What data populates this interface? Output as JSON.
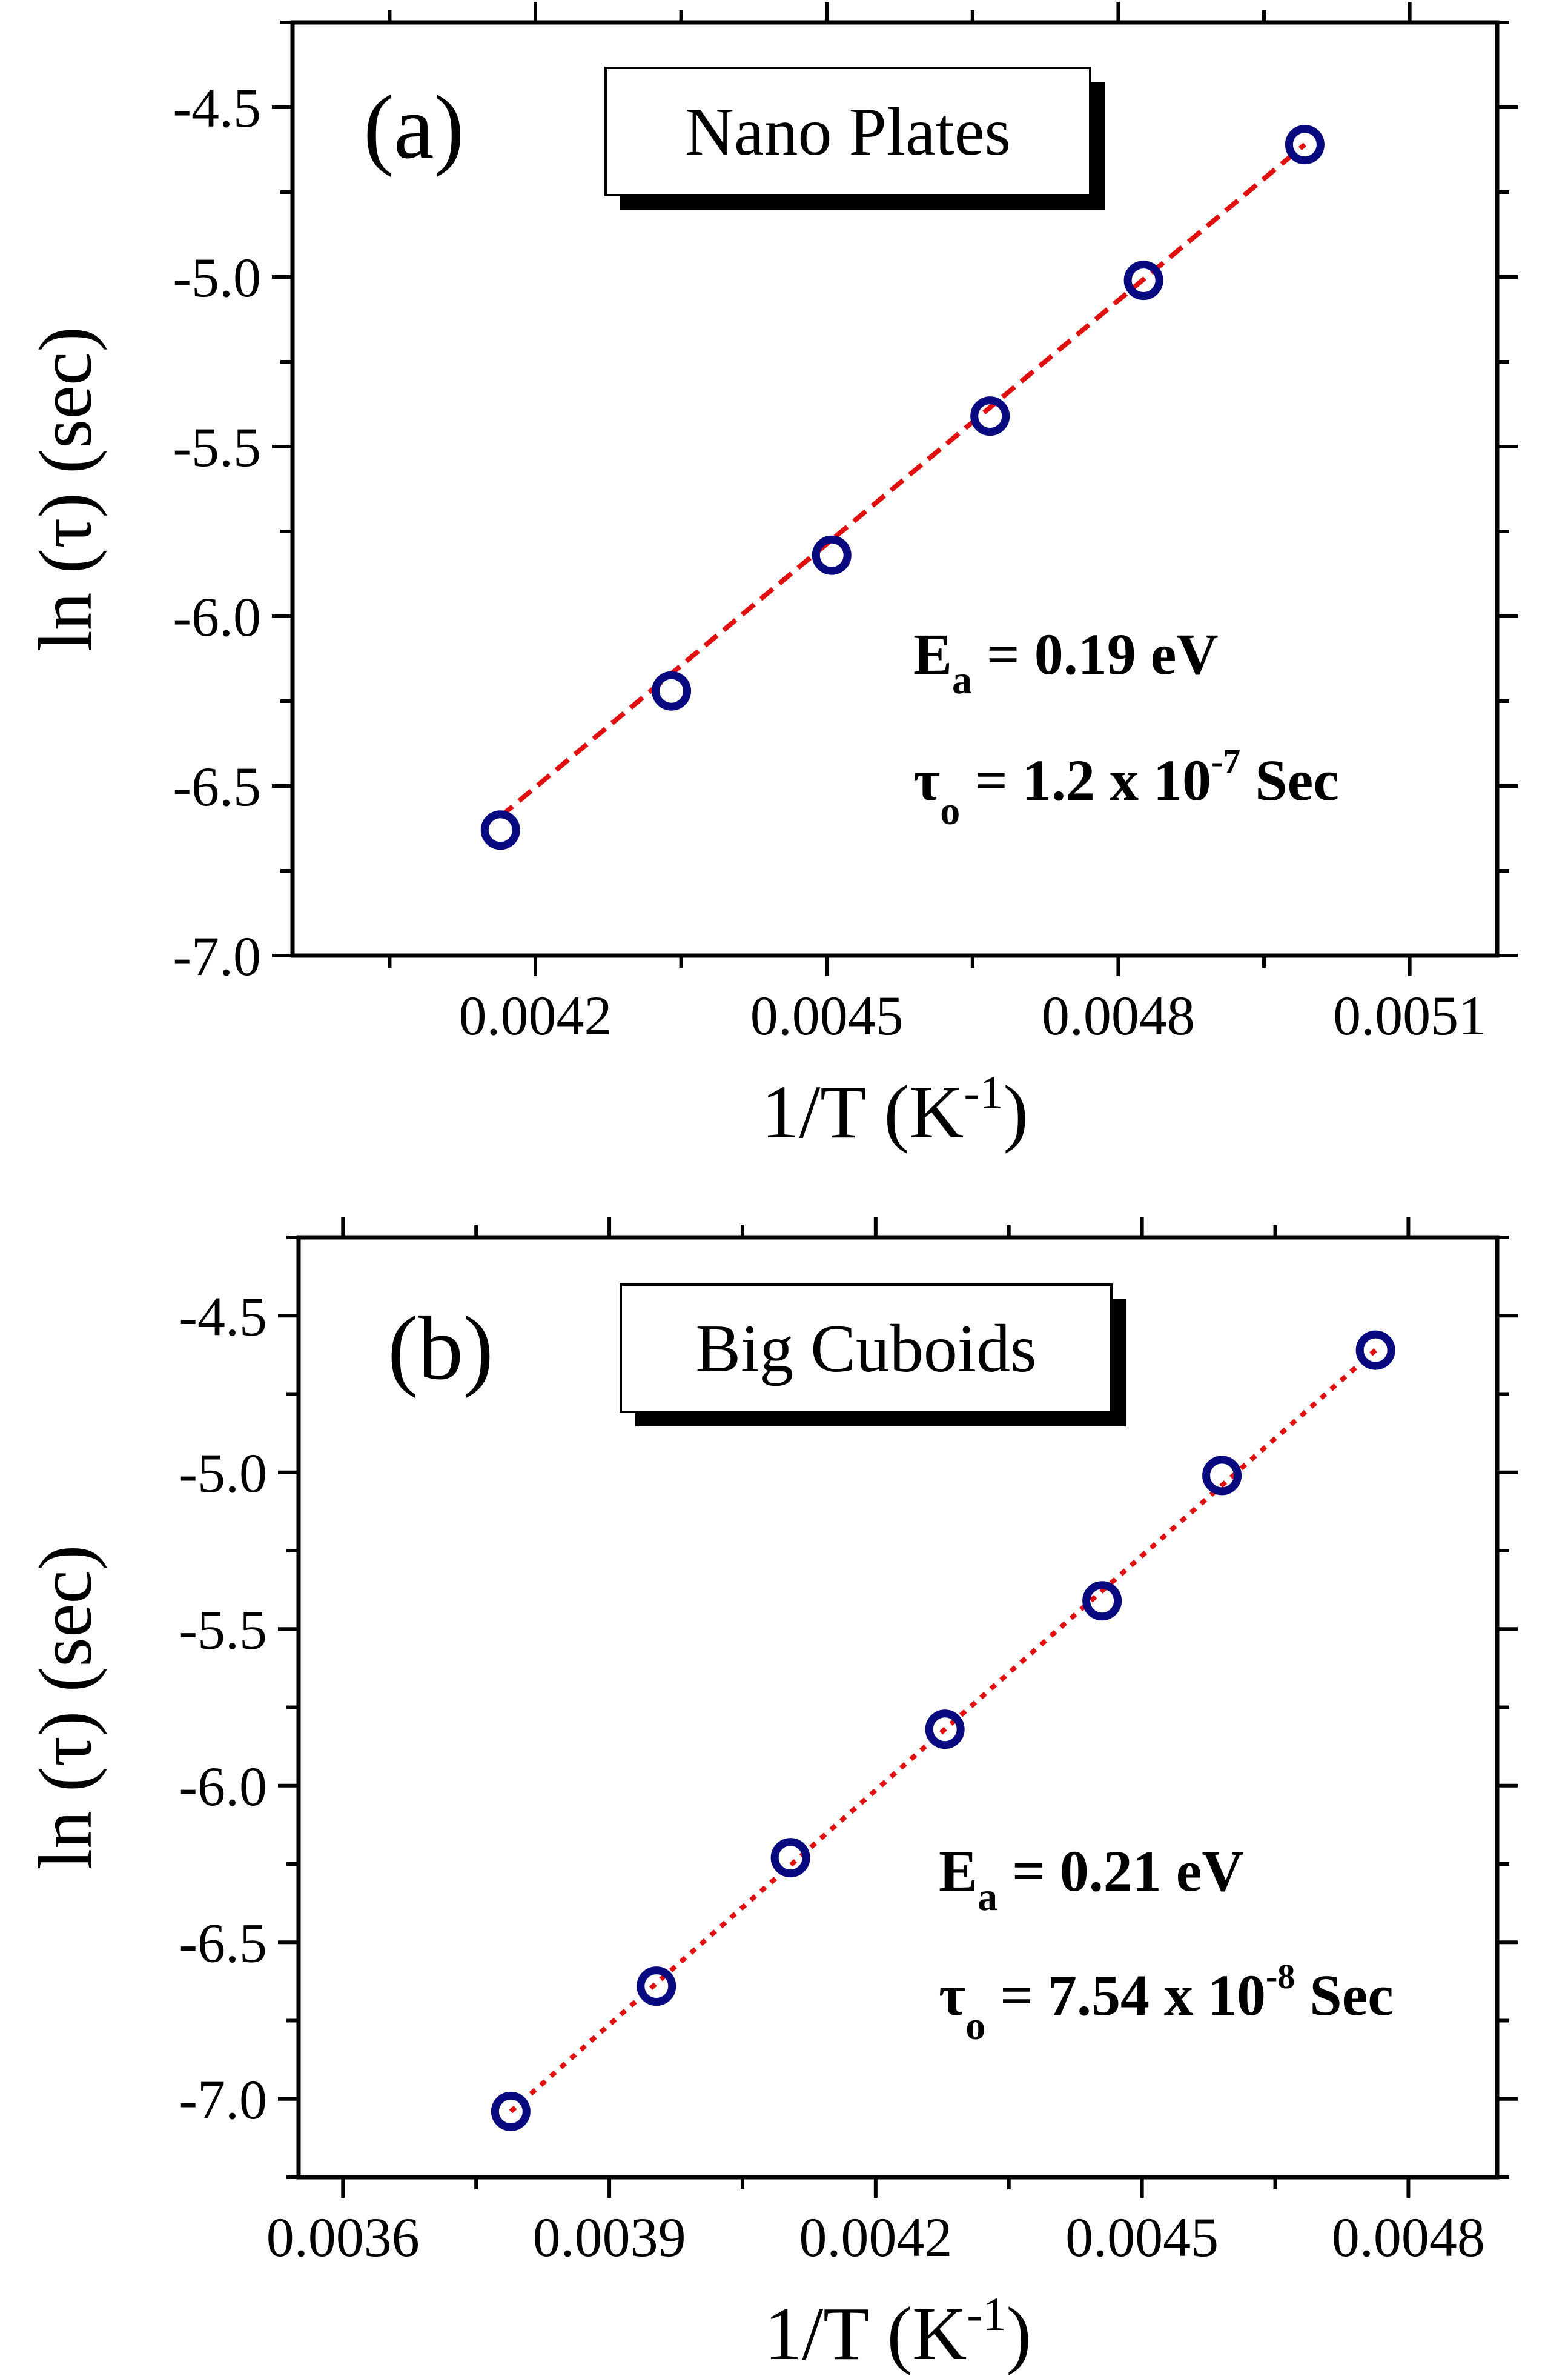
{
  "chart_data": [
    {
      "type": "scatter",
      "panel_label": "(a)",
      "legend": "Nano Plates",
      "xlabel": "1/T (K",
      "xlabel_sup": "-1",
      "xlabel_close": ")",
      "ylabel": "ln (τ) (sec)",
      "xlim": [
        0.00395,
        0.00519
      ],
      "ylim": [
        -7.0,
        -4.25
      ],
      "xticks": [
        0.0042,
        0.0045,
        0.0048,
        0.0051
      ],
      "xtick_labels": [
        "0.0042",
        "0.0045",
        "0.0048",
        "0.0051"
      ],
      "yticks": [
        -7.0,
        -6.5,
        -6.0,
        -5.5,
        -5.0,
        -4.5
      ],
      "ytick_labels": [
        "-7.0",
        "-6.5",
        "-6.0",
        "-5.5",
        "-5.0",
        "-4.5"
      ],
      "x": [
        0.004164,
        0.00434,
        0.004505,
        0.004668,
        0.004826,
        0.004992
      ],
      "y": [
        -6.63,
        -6.22,
        -5.82,
        -5.41,
        -5.01,
        -4.61
      ],
      "fit": {
        "x": [
          0.004164,
          0.004992
        ],
        "y": [
          -6.59,
          -4.61
        ],
        "style": "dashed",
        "color": "#e01010"
      },
      "marker_color": "#0a0a80",
      "annotation": {
        "ea_symbol": "E",
        "ea_sub": "a",
        "ea_value": " = 0.19 eV",
        "tau_symbol": "τ",
        "tau_sub": "o",
        "tau_value": " = 1.2 x 10",
        "tau_exp": "-7",
        "tau_unit": " Sec"
      }
    },
    {
      "type": "scatter",
      "panel_label": "(b)",
      "legend": "Big Cuboids",
      "xlabel": "1/T (K",
      "xlabel_sup": "-1",
      "xlabel_close": ")",
      "ylabel": "ln (τ) (sec)",
      "xlim": [
        0.00355,
        0.0049
      ],
      "ylim": [
        -7.25,
        -4.25
      ],
      "xticks": [
        0.0036,
        0.0039,
        0.0042,
        0.0045,
        0.0048
      ],
      "xtick_labels": [
        "0.0036",
        "0.0039",
        "0.0042",
        "0.0045",
        "0.0048"
      ],
      "yticks": [
        -7.0,
        -6.5,
        -6.0,
        -5.5,
        -5.0,
        -4.5
      ],
      "ytick_labels": [
        "-7.0",
        "-6.5",
        "-6.0",
        "-5.5",
        "-5.0",
        "-4.5"
      ],
      "x": [
        0.003789,
        0.003953,
        0.004104,
        0.004278,
        0.004455,
        0.00459,
        0.004763
      ],
      "y": [
        -7.04,
        -6.64,
        -6.23,
        -5.82,
        -5.41,
        -5.01,
        -4.61
      ],
      "fit": {
        "x": [
          0.003789,
          0.004763
        ],
        "y": [
          -7.04,
          -4.61
        ],
        "style": "dotted",
        "color": "#e01010"
      },
      "marker_color": "#0a0a80",
      "annotation": {
        "ea_symbol": "E",
        "ea_sub": "a",
        "ea_value": " = 0.21 eV",
        "tau_symbol": "τ",
        "tau_sub": "o",
        "tau_value": " = 7.54 x 10",
        "tau_exp": "-8",
        "tau_unit": " Sec"
      }
    }
  ]
}
